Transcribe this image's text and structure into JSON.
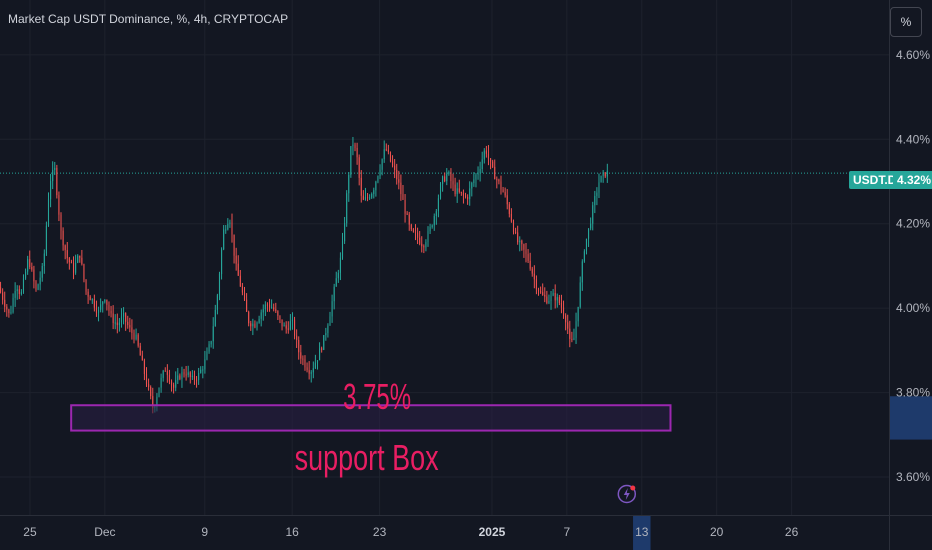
{
  "header": {
    "title": "Market Cap USDT Dominance, %, 4h, CRYPTOCAP",
    "unit_button": "%"
  },
  "price_tag": {
    "symbol": "USDT.D",
    "value": "4.32%"
  },
  "colors": {
    "background": "#131722",
    "up": "#26a69a",
    "down": "#ef5350",
    "grid": "#1e222d",
    "axis_text": "#b2b5be",
    "annotation": "#e91e63",
    "box_border": "#9c27b0",
    "box_fill": "#2a1f45",
    "range_highlight": "#1e3a6b"
  },
  "icons": {
    "flash": "lightning-icon"
  },
  "chart_data": {
    "type": "candlestick",
    "title": "Market Cap USDT Dominance, %, 4h, CRYPTOCAP",
    "xlabel": "",
    "ylabel": "",
    "ylim": [
      3.51,
      4.73
    ],
    "y_ticks": [
      {
        "value": 4.6,
        "label": "4.60%"
      },
      {
        "value": 4.4,
        "label": "4.40%"
      },
      {
        "value": 4.2,
        "label": "4.20%"
      },
      {
        "value": 4.0,
        "label": "4.00%"
      },
      {
        "value": 3.8,
        "label": "3.80%"
      },
      {
        "value": 3.6,
        "label": "3.60%"
      }
    ],
    "x_ticks": [
      {
        "day": 0,
        "label": "25"
      },
      {
        "day": 6,
        "label": "Dec"
      },
      {
        "day": 14,
        "label": "9"
      },
      {
        "day": 21,
        "label": "16"
      },
      {
        "day": 28,
        "label": "23"
      },
      {
        "day": 37,
        "label": "2025"
      },
      {
        "day": 43,
        "label": "7"
      },
      {
        "day": 49,
        "label": "13"
      },
      {
        "day": 55,
        "label": "20"
      },
      {
        "day": 61,
        "label": "26"
      }
    ],
    "x_range_days": [
      -2.4,
      68.8
    ],
    "candle_step_days": 0.167,
    "last_price": 4.32,
    "path_points": [
      [
        -2.4,
        4.05
      ],
      [
        -2.0,
        4.02
      ],
      [
        -1.5,
        3.98
      ],
      [
        -1.0,
        4.06
      ],
      [
        -0.6,
        4.03
      ],
      [
        0.0,
        4.12
      ],
      [
        0.6,
        4.04
      ],
      [
        1.2,
        4.1
      ],
      [
        1.7,
        4.3
      ],
      [
        2.1,
        4.33
      ],
      [
        2.6,
        4.18
      ],
      [
        3.1,
        4.12
      ],
      [
        3.6,
        4.09
      ],
      [
        4.1,
        4.13
      ],
      [
        4.6,
        4.04
      ],
      [
        5.1,
        4.02
      ],
      [
        5.6,
        3.99
      ],
      [
        6.1,
        4.03
      ],
      [
        6.6,
        3.98
      ],
      [
        7.1,
        3.96
      ],
      [
        7.6,
        3.98
      ],
      [
        8.1,
        3.95
      ],
      [
        8.6,
        3.93
      ],
      [
        9.1,
        3.87
      ],
      [
        9.5,
        3.82
      ],
      [
        10.0,
        3.76
      ],
      [
        10.5,
        3.82
      ],
      [
        11.0,
        3.86
      ],
      [
        11.6,
        3.81
      ],
      [
        12.1,
        3.84
      ],
      [
        12.6,
        3.85
      ],
      [
        13.1,
        3.83
      ],
      [
        13.6,
        3.84
      ],
      [
        14.1,
        3.87
      ],
      [
        14.6,
        3.92
      ],
      [
        15.1,
        4.02
      ],
      [
        15.6,
        4.18
      ],
      [
        16.1,
        4.22
      ],
      [
        16.6,
        4.1
      ],
      [
        17.1,
        4.04
      ],
      [
        17.6,
        3.97
      ],
      [
        18.1,
        3.96
      ],
      [
        18.6,
        3.99
      ],
      [
        19.1,
        4.01
      ],
      [
        19.6,
        4.0
      ],
      [
        20.1,
        3.97
      ],
      [
        20.6,
        3.95
      ],
      [
        21.1,
        3.97
      ],
      [
        21.6,
        3.9
      ],
      [
        22.1,
        3.87
      ],
      [
        22.6,
        3.85
      ],
      [
        23.1,
        3.88
      ],
      [
        23.6,
        3.92
      ],
      [
        24.1,
        3.98
      ],
      [
        24.6,
        4.06
      ],
      [
        25.1,
        4.13
      ],
      [
        25.5,
        4.27
      ],
      [
        25.9,
        4.4
      ],
      [
        26.3,
        4.36
      ],
      [
        26.7,
        4.25
      ],
      [
        27.1,
        4.26
      ],
      [
        27.6,
        4.28
      ],
      [
        28.1,
        4.33
      ],
      [
        28.6,
        4.38
      ],
      [
        29.1,
        4.34
      ],
      [
        29.6,
        4.3
      ],
      [
        30.1,
        4.24
      ],
      [
        30.6,
        4.18
      ],
      [
        31.1,
        4.17
      ],
      [
        31.6,
        4.15
      ],
      [
        32.1,
        4.18
      ],
      [
        32.6,
        4.23
      ],
      [
        33.1,
        4.3
      ],
      [
        33.6,
        4.32
      ],
      [
        34.1,
        4.28
      ],
      [
        34.6,
        4.27
      ],
      [
        35.1,
        4.26
      ],
      [
        35.6,
        4.3
      ],
      [
        36.1,
        4.33
      ],
      [
        36.6,
        4.38
      ],
      [
        37.1,
        4.33
      ],
      [
        37.6,
        4.3
      ],
      [
        38.1,
        4.27
      ],
      [
        38.6,
        4.22
      ],
      [
        39.1,
        4.16
      ],
      [
        39.6,
        4.14
      ],
      [
        40.1,
        4.11
      ],
      [
        40.6,
        4.06
      ],
      [
        41.1,
        4.03
      ],
      [
        41.6,
        4.02
      ],
      [
        42.1,
        4.03
      ],
      [
        42.6,
        4.01
      ],
      [
        43.1,
        3.97
      ],
      [
        43.4,
        3.91
      ],
      [
        43.7,
        3.93
      ],
      [
        44.1,
        4.03
      ],
      [
        44.5,
        4.14
      ],
      [
        44.9,
        4.19
      ],
      [
        45.3,
        4.25
      ],
      [
        45.7,
        4.3
      ],
      [
        46.2,
        4.32
      ]
    ],
    "annotations": [
      {
        "type": "text",
        "label": "3.75%",
        "y": 3.79
      },
      {
        "type": "rect",
        "x": [
          3.3,
          51.3
        ],
        "y": [
          3.71,
          3.77
        ]
      },
      {
        "type": "text",
        "label": "support Box",
        "y": 3.65
      }
    ],
    "highlight_x_range_days": [
      48.3,
      49.7
    ],
    "grid": true
  }
}
